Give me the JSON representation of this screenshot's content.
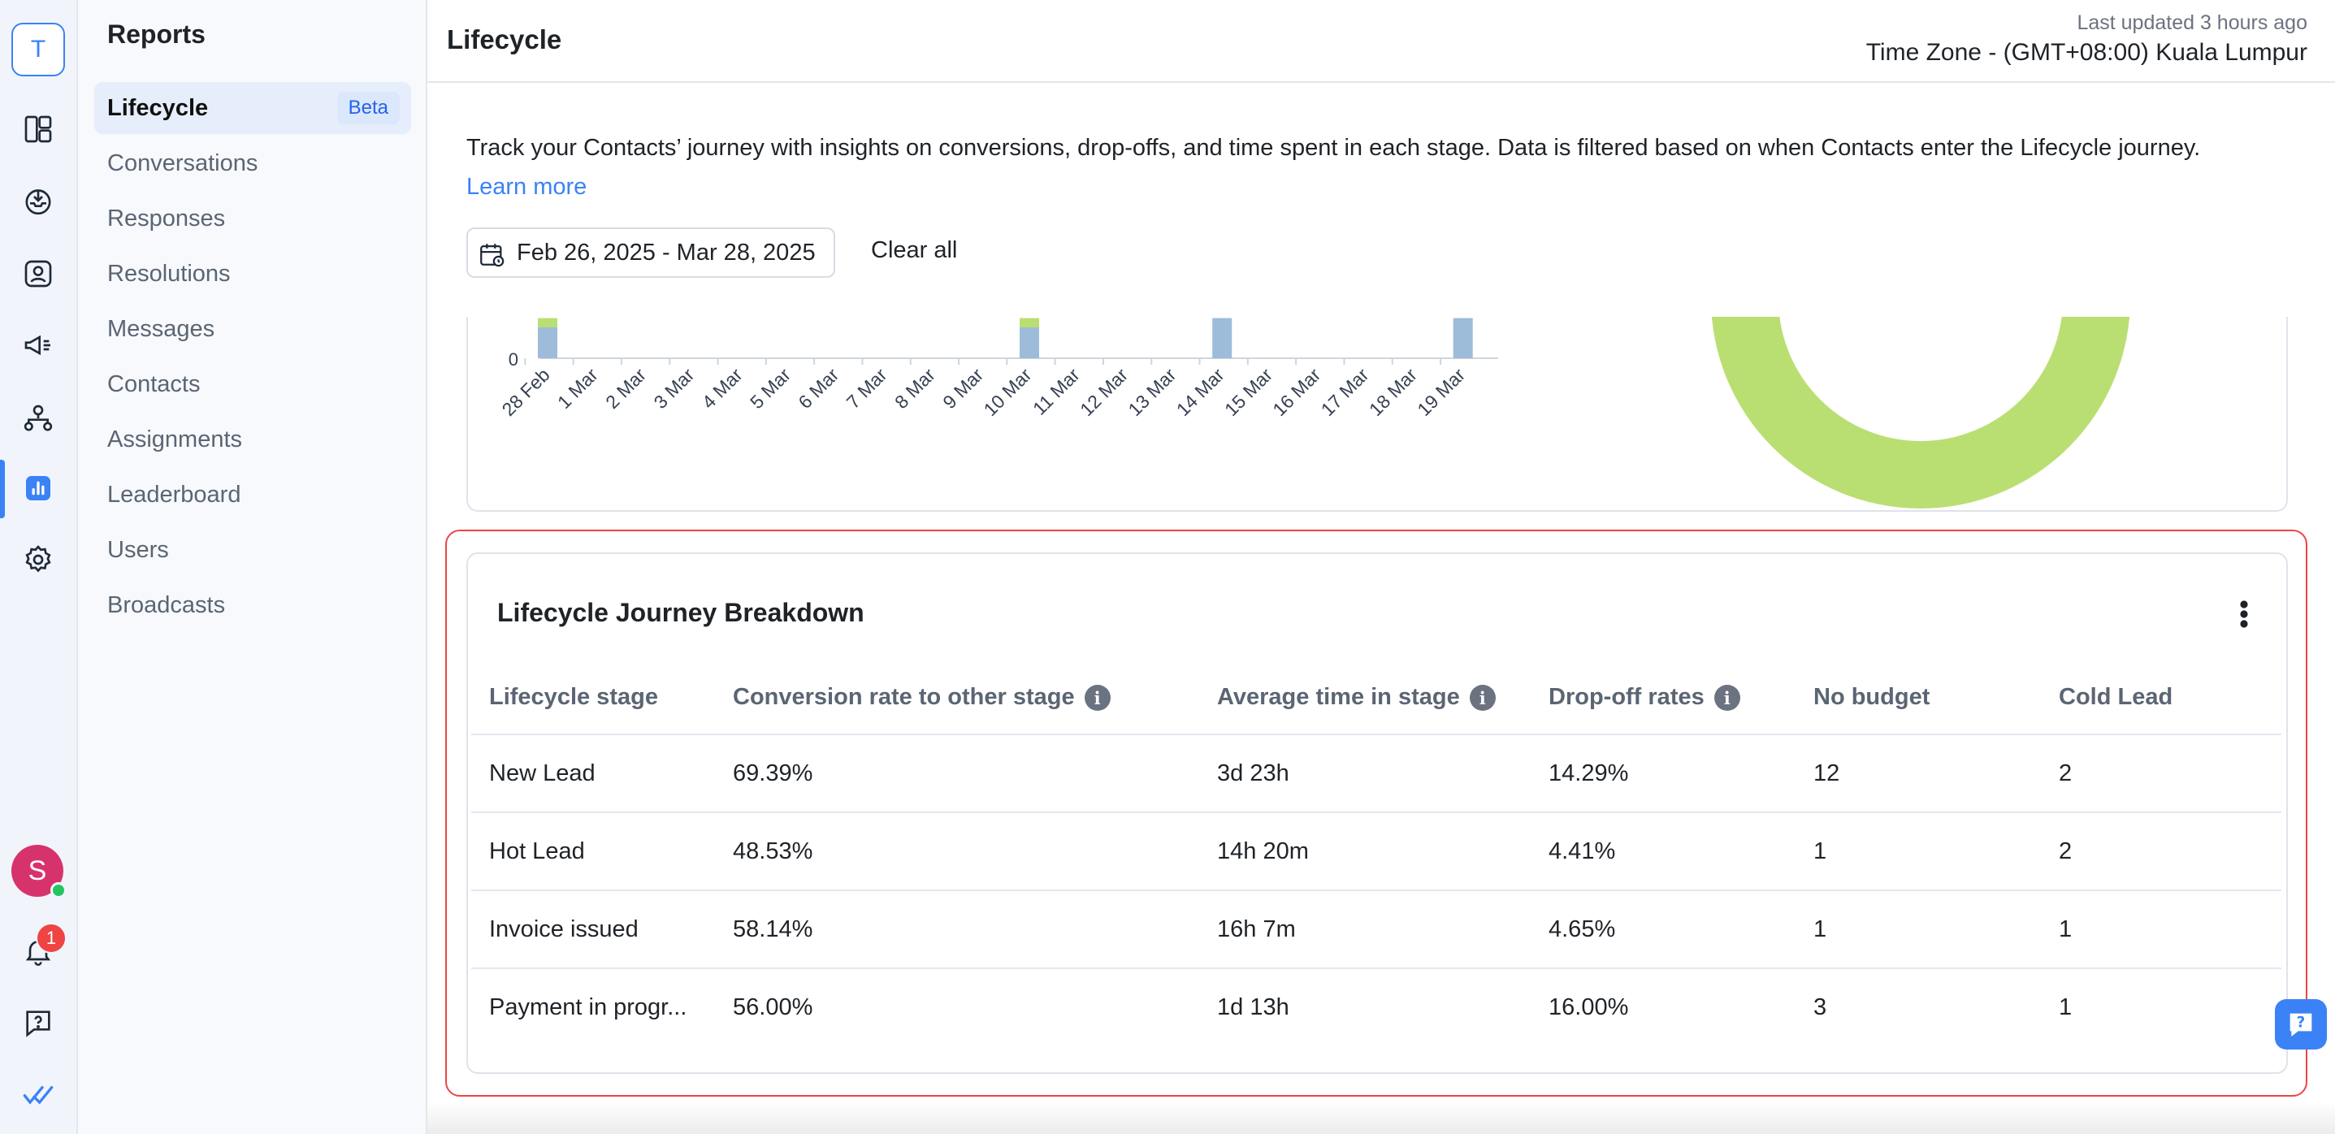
{
  "workspace": {
    "initial": "T"
  },
  "rail": {
    "icons": [
      "dashboard-icon",
      "inbox-icon",
      "contacts-icon",
      "broadcast-icon",
      "workflow-icon",
      "reports-icon",
      "settings-icon"
    ],
    "user_initial": "S",
    "notification_count": "1"
  },
  "subnav": {
    "title": "Reports",
    "items": [
      {
        "label": "Lifecycle",
        "badge": "Beta",
        "active": true
      },
      {
        "label": "Conversations"
      },
      {
        "label": "Responses"
      },
      {
        "label": "Resolutions"
      },
      {
        "label": "Messages"
      },
      {
        "label": "Contacts"
      },
      {
        "label": "Assignments"
      },
      {
        "label": "Leaderboard"
      },
      {
        "label": "Users"
      },
      {
        "label": "Broadcasts"
      }
    ]
  },
  "header": {
    "title": "Lifecycle",
    "last_updated": "Last updated 3 hours ago",
    "timezone": "Time Zone - (GMT+08:00) Kuala Lumpur"
  },
  "intro": {
    "text": "Track your Contacts’ journey with insights on conversions, drop-offs, and time spent in each stage. Data is filtered based on when Contacts enter the Lifecycle journey.",
    "learn_more": "Learn more"
  },
  "filters": {
    "date_range": "Feb 26, 2025 - Mar 28, 2025",
    "clear_all": "Clear all"
  },
  "chart_data": {
    "type": "bar",
    "categories": [
      "28 Feb",
      "1 Mar",
      "2 Mar",
      "3 Mar",
      "4 Mar",
      "5 Mar",
      "6 Mar",
      "7 Mar",
      "8 Mar",
      "9 Mar",
      "10 Mar",
      "11 Mar",
      "12 Mar",
      "13 Mar",
      "14 Mar",
      "15 Mar",
      "16 Mar",
      "17 Mar",
      "18 Mar",
      "19 Mar"
    ],
    "y_tick_visible": "0",
    "series": [
      {
        "color": "#9dbcd9",
        "values": [
          1.0,
          0,
          0,
          0,
          0,
          0,
          0,
          0,
          0,
          0,
          1.0,
          0,
          0,
          0,
          1.3,
          0,
          0,
          0,
          0,
          1.3
        ]
      },
      {
        "color": "#b9df72",
        "values": [
          0.3,
          0,
          0,
          0,
          0,
          0,
          0,
          0,
          0,
          0,
          0.3,
          0,
          0,
          0,
          0,
          0,
          0,
          0,
          0,
          0
        ]
      }
    ],
    "donut_color": "#b9df72"
  },
  "breakdown": {
    "title": "Lifecycle Journey Breakdown",
    "columns": [
      {
        "label": "Lifecycle stage",
        "info": false
      },
      {
        "label": "Conversion rate to other stage",
        "info": true
      },
      {
        "label": "Average time in stage",
        "info": true
      },
      {
        "label": "Drop-off rates",
        "info": true
      },
      {
        "label": "No budget",
        "info": false
      },
      {
        "label": "Cold Lead",
        "info": false
      }
    ],
    "rows": [
      [
        "New Lead",
        "69.39%",
        "3d 23h",
        "14.29%",
        "12",
        "2"
      ],
      [
        "Hot Lead",
        "48.53%",
        "14h 20m",
        "4.41%",
        "1",
        "2"
      ],
      [
        "Invoice issued",
        "58.14%",
        "16h 7m",
        "4.65%",
        "1",
        "1"
      ],
      [
        "Payment in progr...",
        "56.00%",
        "1d 13h",
        "16.00%",
        "3",
        "1"
      ]
    ]
  }
}
